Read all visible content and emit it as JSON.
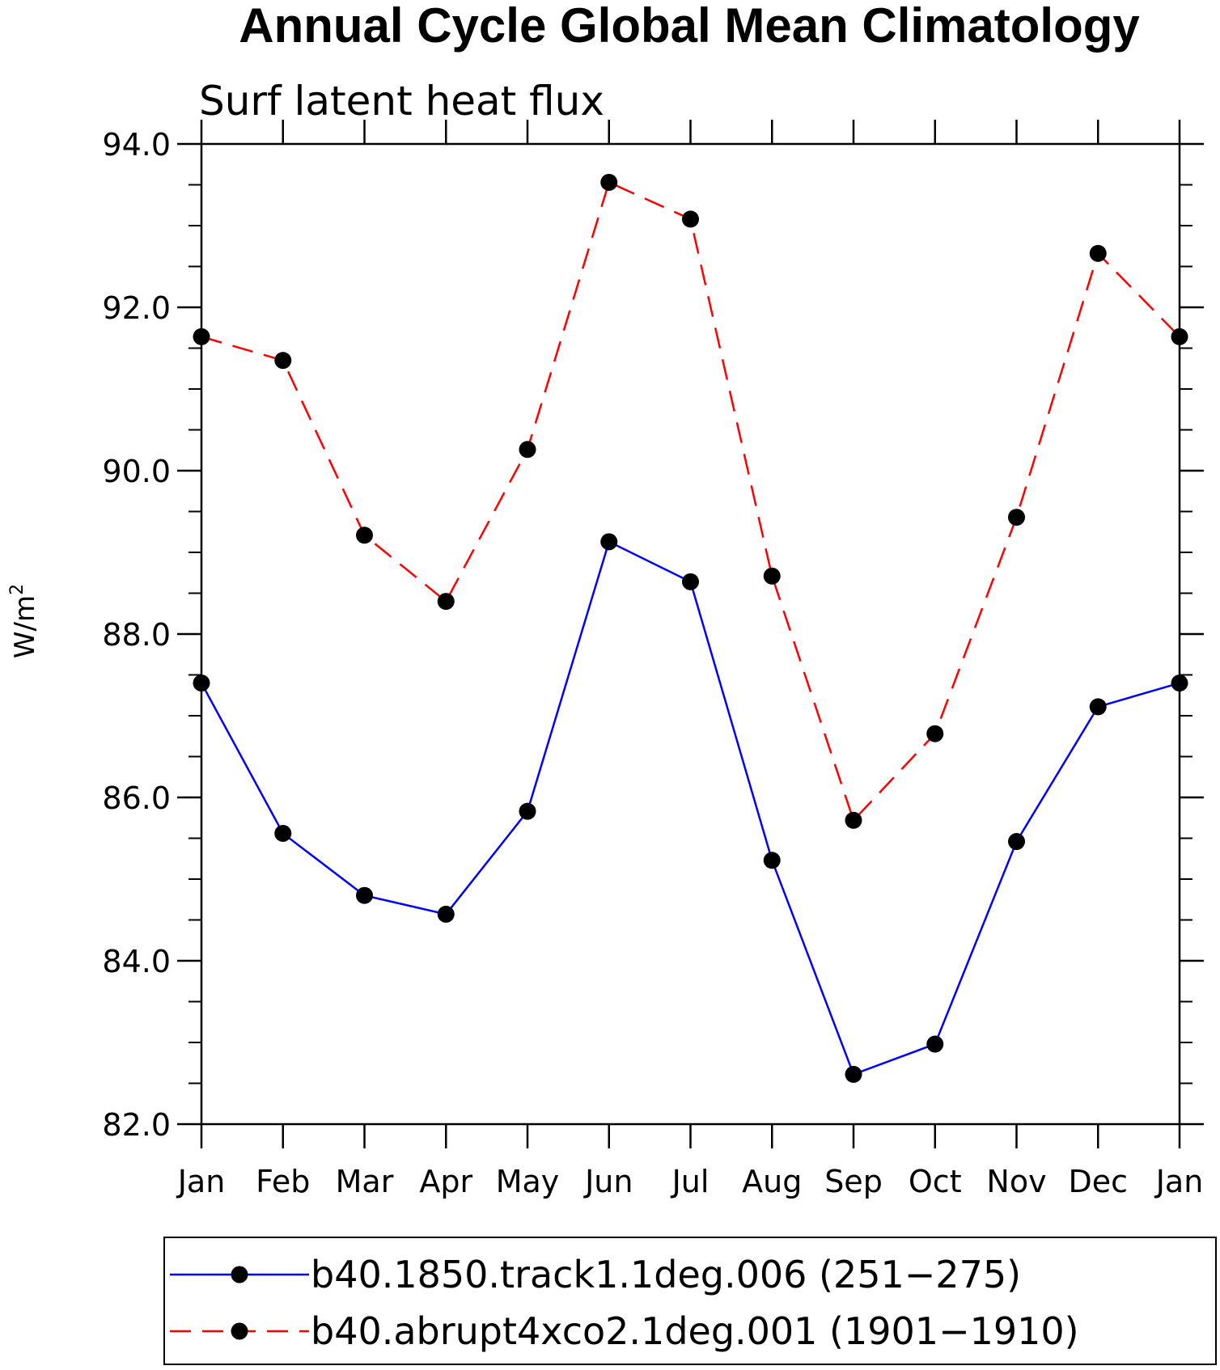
{
  "chart_data": {
    "type": "line",
    "title": "Annual Cycle Global Mean Climatology",
    "subtitle": "Surf latent heat flux",
    "xlabel": "",
    "ylabel": "W/m",
    "ylabel_superscript": "2",
    "categories": [
      "Jan",
      "Feb",
      "Mar",
      "Apr",
      "May",
      "Jun",
      "Jul",
      "Aug",
      "Sep",
      "Oct",
      "Nov",
      "Dec",
      "Jan"
    ],
    "ylim": [
      82.0,
      94.0
    ],
    "yticks": [
      "82.0",
      "84.0",
      "86.0",
      "88.0",
      "90.0",
      "92.0",
      "94.0"
    ],
    "grid": false,
    "legend_position": "bottom",
    "series": [
      {
        "name": "b40.1850.track1.1deg.006 (251−275)",
        "color": "#0000ff",
        "dash": "solid",
        "marker": "filled-circle",
        "values": [
          87.4,
          85.56,
          84.8,
          84.57,
          85.83,
          89.13,
          88.64,
          85.23,
          82.61,
          82.98,
          85.46,
          87.11,
          87.4
        ]
      },
      {
        "name": "b40.abrupt4xco2.1deg.001 (1901−1910)",
        "color": "#ff0000",
        "dash": "dashed",
        "marker": "filled-circle",
        "values": [
          91.64,
          91.35,
          89.21,
          88.4,
          90.26,
          93.53,
          93.08,
          88.71,
          85.72,
          86.78,
          89.43,
          92.66,
          91.64
        ]
      }
    ]
  }
}
